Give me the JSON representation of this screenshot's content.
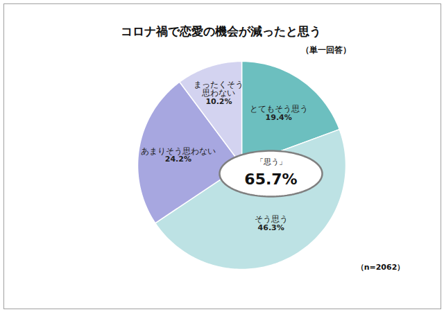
{
  "chart_data": {
    "type": "pie",
    "title": "コロナ禍で恋愛の機会が減ったと思う",
    "subtitle": "（単一回答）",
    "categories": [
      "とてもそう思う",
      "そう思う",
      "あまりそう思わない",
      "まったくそう\n思わない"
    ],
    "values": [
      19.4,
      46.3,
      24.2,
      10.2
    ],
    "value_labels": [
      "19.4%",
      "46.3%",
      "24.2%",
      "10.2%"
    ],
    "colors": [
      "#6cbfbf",
      "#bde2e4",
      "#a7a7e0",
      "#d3d3f0"
    ],
    "data_labels": true,
    "annotations": [
      {
        "label": "「思う」",
        "value": 65.7,
        "value_label": "65.7%"
      }
    ],
    "caption": "（n=2062）"
  }
}
